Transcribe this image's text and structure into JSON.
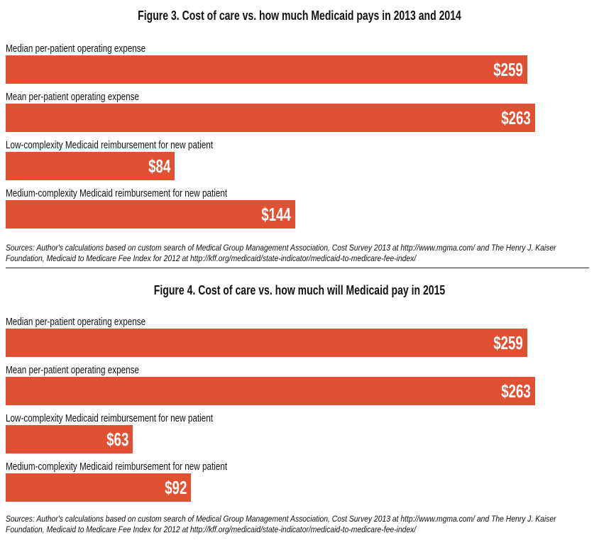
{
  "chart_data": [
    {
      "type": "bar",
      "orientation": "horizontal",
      "title": "Figure 3. Cost of care vs. how much Medicaid pays in 2013 and 2014",
      "categories": [
        "Median per-patient operating expense",
        "Mean per-patient operating expense",
        "Low-complexity Medicaid reimbursement for new patient",
        "Medium-complexity Medicaid reimbursement for new patient"
      ],
      "values": [
        259,
        263,
        84,
        144
      ],
      "value_labels": [
        "$259",
        "$263",
        "$84",
        "$144"
      ],
      "xlim": [
        0,
        275
      ],
      "grid": false,
      "sources": "Sources: Author's calculations based on custom search of Medical Group Management Association, Cost Survey 2013 at http://www.mgma.com/ and The Henry J. Kaiser Foundation, Medicaid to Medicare Fee Index for 2012 at http://kff.org/medicaid/state-indicator/medicaid-to-medicare-fee-index/"
    },
    {
      "type": "bar",
      "orientation": "horizontal",
      "title": "Figure 4. Cost of care vs. how much will Medicaid pay in 2015",
      "categories": [
        "Median per-patient operating expense",
        "Mean per-patient operating expense",
        "Low-complexity Medicaid reimbursement for new patient",
        "Medium-complexity Medicaid reimbursement for new patient"
      ],
      "values": [
        259,
        263,
        63,
        92
      ],
      "value_labels": [
        "$259",
        "$263",
        "$63",
        "$92"
      ],
      "xlim": [
        0,
        275
      ],
      "grid": false,
      "sources": "Sources: Author's calculations based on custom search of Medical Group Management Association, Cost Survey 2013 at http://www.mgma.com/ and The Henry J. Kaiser Foundation, Medicaid to Medicare Fee Index for 2012 at http://kff.org/medicaid/state-indicator/medicaid-to-medicare-fee-index/"
    }
  ],
  "colors": {
    "bar": "#e05033",
    "bar_text": "#ffffff"
  }
}
